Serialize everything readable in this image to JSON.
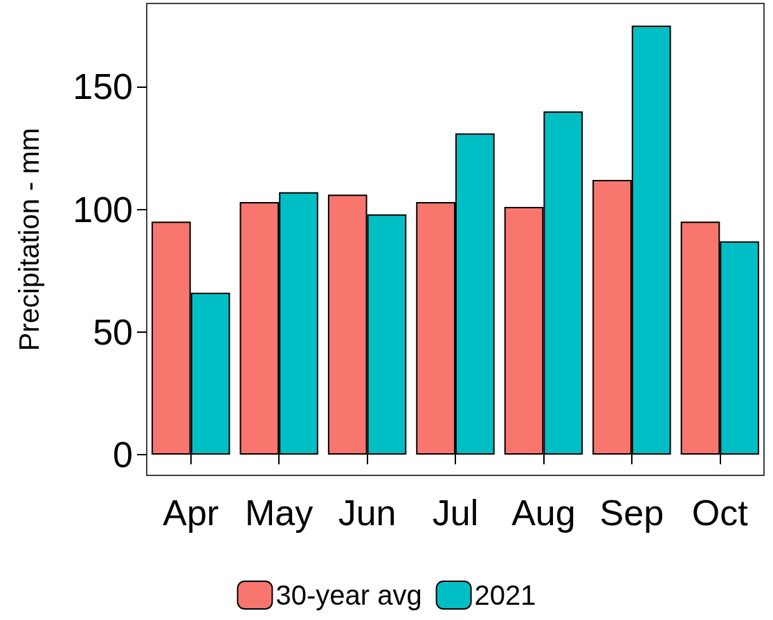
{
  "chart_data": {
    "type": "bar",
    "ylabel": "Precipitation - mm",
    "categories": [
      "Apr",
      "May",
      "Jun",
      "Jul",
      "Aug",
      "Sep",
      "Oct"
    ],
    "series": [
      {
        "name": "30-year avg",
        "color": "#f8766d",
        "values": [
          95,
          103,
          106,
          103,
          101,
          112,
          95
        ]
      },
      {
        "name": "2021",
        "color": "#00bfc4",
        "values": [
          66,
          107,
          98,
          131,
          140,
          175,
          87
        ]
      }
    ],
    "ylim": [
      -8.5,
      184
    ],
    "yticks": [
      0,
      50,
      100,
      150
    ],
    "grid": false,
    "legend": "bottom"
  }
}
